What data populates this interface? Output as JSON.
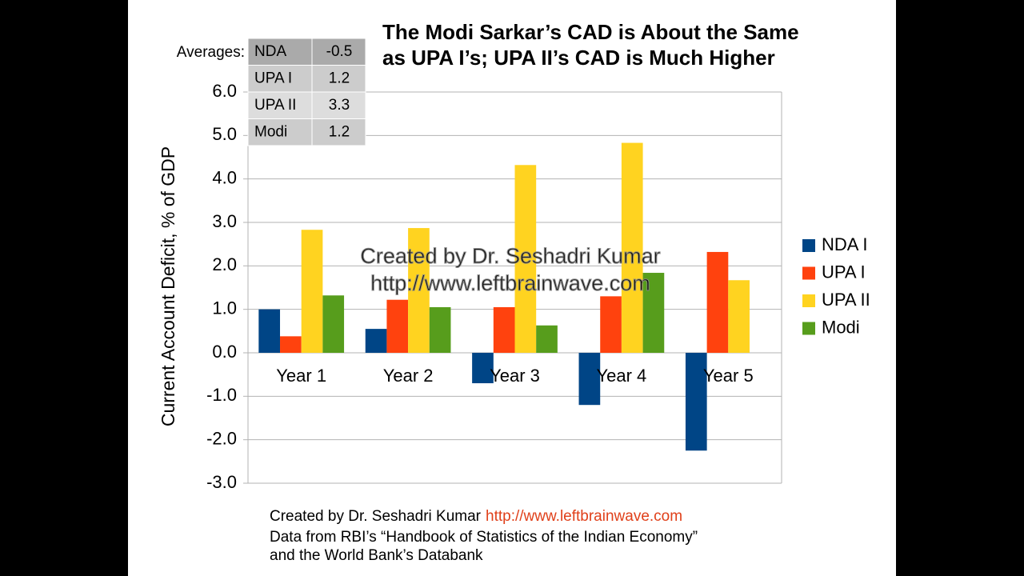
{
  "chart_data": {
    "type": "bar",
    "title": [
      "The Modi Sarkar’s CAD is About the Same",
      "as UPA I’s; UPA II’s CAD is Much Higher"
    ],
    "y_label": "Current Account Deficit, % of GDP",
    "categories": [
      "Year 1",
      "Year 2",
      "Year 3",
      "Year 4",
      "Year 5"
    ],
    "series": [
      {
        "name": "NDA I",
        "color": "#004586",
        "values": [
          1.0,
          0.55,
          -0.7,
          -1.2,
          -2.25
        ]
      },
      {
        "name": "UPA I",
        "color": "#ff420e",
        "values": [
          0.38,
          1.22,
          1.05,
          1.3,
          2.32
        ]
      },
      {
        "name": "UPA II",
        "color": "#ffd320",
        "values": [
          2.83,
          2.87,
          4.32,
          4.83,
          1.67
        ]
      },
      {
        "name": "Modi",
        "color": "#579d1c",
        "values": [
          1.32,
          1.05,
          0.63,
          1.84,
          null
        ]
      }
    ],
    "ylim": [
      -3,
      6
    ],
    "yticks": [
      {
        "value": -3,
        "label": "-3.0"
      },
      {
        "value": -2,
        "label": "-2.0"
      },
      {
        "value": -1,
        "label": "-1.0"
      },
      {
        "value": 0,
        "label": "0.0"
      },
      {
        "value": 1,
        "label": "1.0"
      },
      {
        "value": 2,
        "label": "2.0"
      },
      {
        "value": 3,
        "label": "3.0"
      },
      {
        "value": 4,
        "label": "4.0"
      },
      {
        "value": 5,
        "label": "5.0"
      },
      {
        "value": 6,
        "label": "6.0"
      }
    ],
    "grid": true,
    "legend": "right"
  },
  "averages": {
    "label": "Averages:",
    "rows": [
      [
        "NDA",
        -0.5
      ],
      [
        "UPA I",
        1.2
      ],
      [
        "UPA II",
        3.3
      ],
      [
        "Modi",
        1.2
      ]
    ]
  },
  "watermark": [
    "Created by Dr. Seshadri Kumar",
    "http://www.leftbrainwave.com"
  ],
  "footer": {
    "credit": "Created by Dr. Seshadri Kumar",
    "url": "http://www.leftbrainwave.com",
    "lines": [
      "Data from RBI’s “Handbook of Statistics of the Indian Economy”",
      "and the World Bank’s Databank"
    ]
  }
}
